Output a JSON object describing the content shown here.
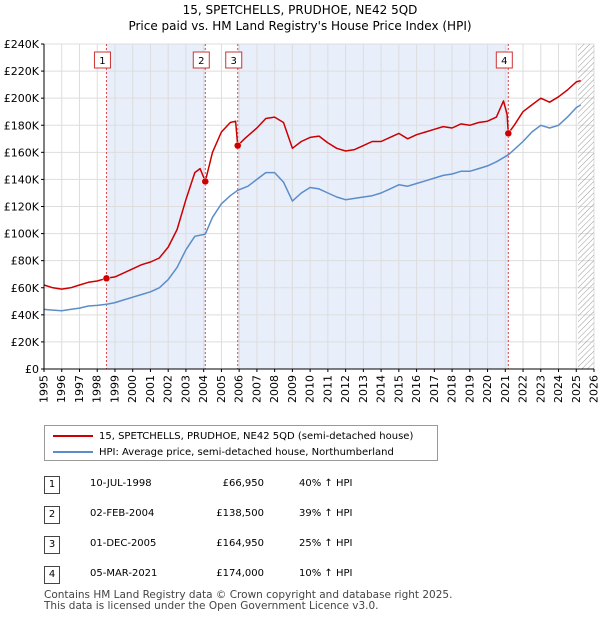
{
  "title_line1": "15, SPETCHELLS, PRUDHOE, NE42 5QD",
  "title_line2": "Price paid vs. HM Land Registry's House Price Index (HPI)",
  "chart_data": {
    "type": "line",
    "ylim": [
      0,
      240000
    ],
    "xlim": [
      1995,
      2026
    ],
    "y_ticks": [
      0,
      20000,
      40000,
      60000,
      80000,
      100000,
      120000,
      140000,
      160000,
      180000,
      200000,
      220000,
      240000
    ],
    "y_tick_labels": [
      "£0",
      "£20K",
      "£40K",
      "£60K",
      "£80K",
      "£100K",
      "£120K",
      "£140K",
      "£160K",
      "£180K",
      "£200K",
      "£220K",
      "£240K"
    ],
    "x_ticks": [
      1995,
      1996,
      1997,
      1998,
      1999,
      2000,
      2001,
      2002,
      2003,
      2004,
      2005,
      2006,
      2007,
      2008,
      2009,
      2010,
      2011,
      2012,
      2013,
      2014,
      2015,
      2016,
      2017,
      2018,
      2019,
      2020,
      2021,
      2022,
      2023,
      2024,
      2025,
      2026
    ],
    "x_tick_labels": [
      "1995",
      "1996",
      "1997",
      "1998",
      "1999",
      "2000",
      "2001",
      "2002",
      "2003",
      "2004",
      "2005",
      "2006",
      "2007",
      "2008",
      "2009",
      "2010",
      "2011",
      "2012",
      "2013",
      "2014",
      "2015",
      "2016",
      "2017",
      "2018",
      "2019",
      "2020",
      "2021",
      "2022",
      "2023",
      "2024",
      "2025",
      "2026"
    ],
    "shaded_ranges": [
      [
        1998.52,
        2004.09
      ],
      [
        2005.92,
        2021.17
      ]
    ],
    "hatched_from": 2025.1,
    "series": [
      {
        "name": "15, SPETCHELLS, PRUDHOE, NE42 5QD (semi-detached house)",
        "color": "#cc0000",
        "points": [
          [
            1995.0,
            62000
          ],
          [
            1995.5,
            60000
          ],
          [
            1996.0,
            59000
          ],
          [
            1996.5,
            60000
          ],
          [
            1997.0,
            62000
          ],
          [
            1997.5,
            64000
          ],
          [
            1998.0,
            65000
          ],
          [
            1998.52,
            66950
          ],
          [
            1999.0,
            68000
          ],
          [
            1999.5,
            71000
          ],
          [
            2000.0,
            74000
          ],
          [
            2000.5,
            77000
          ],
          [
            2001.0,
            79000
          ],
          [
            2001.5,
            82000
          ],
          [
            2002.0,
            90000
          ],
          [
            2002.5,
            103000
          ],
          [
            2003.0,
            125000
          ],
          [
            2003.5,
            145000
          ],
          [
            2003.8,
            148000
          ],
          [
            2004.09,
            138500
          ],
          [
            2004.5,
            160000
          ],
          [
            2005.0,
            175000
          ],
          [
            2005.5,
            182000
          ],
          [
            2005.8,
            183000
          ],
          [
            2005.92,
            164950
          ],
          [
            2006.3,
            170000
          ],
          [
            2007.0,
            178000
          ],
          [
            2007.5,
            185000
          ],
          [
            2008.0,
            186000
          ],
          [
            2008.5,
            182000
          ],
          [
            2009.0,
            163000
          ],
          [
            2009.5,
            168000
          ],
          [
            2010.0,
            171000
          ],
          [
            2010.5,
            172000
          ],
          [
            2011.0,
            167000
          ],
          [
            2011.5,
            163000
          ],
          [
            2012.0,
            161000
          ],
          [
            2012.5,
            162000
          ],
          [
            2013.0,
            165000
          ],
          [
            2013.5,
            168000
          ],
          [
            2014.0,
            168000
          ],
          [
            2014.5,
            171000
          ],
          [
            2015.0,
            174000
          ],
          [
            2015.5,
            170000
          ],
          [
            2016.0,
            173000
          ],
          [
            2016.5,
            175000
          ],
          [
            2017.0,
            177000
          ],
          [
            2017.5,
            179000
          ],
          [
            2018.0,
            178000
          ],
          [
            2018.5,
            181000
          ],
          [
            2019.0,
            180000
          ],
          [
            2019.5,
            182000
          ],
          [
            2020.0,
            183000
          ],
          [
            2020.5,
            186000
          ],
          [
            2020.9,
            198000
          ],
          [
            2021.1,
            188000
          ],
          [
            2021.17,
            174000
          ],
          [
            2021.5,
            180000
          ],
          [
            2022.0,
            190000
          ],
          [
            2022.5,
            195000
          ],
          [
            2023.0,
            200000
          ],
          [
            2023.5,
            197000
          ],
          [
            2024.0,
            201000
          ],
          [
            2024.5,
            206000
          ],
          [
            2025.0,
            212000
          ],
          [
            2025.25,
            213000
          ]
        ]
      },
      {
        "name": "HPI: Average price, semi-detached house, Northumberland",
        "color": "#5b8dc9",
        "points": [
          [
            1995.0,
            44000
          ],
          [
            1995.5,
            43500
          ],
          [
            1996.0,
            43000
          ],
          [
            1996.5,
            44000
          ],
          [
            1997.0,
            45000
          ],
          [
            1997.5,
            46500
          ],
          [
            1998.0,
            47000
          ],
          [
            1998.52,
            47800
          ],
          [
            1999.0,
            49000
          ],
          [
            1999.5,
            51000
          ],
          [
            2000.0,
            53000
          ],
          [
            2000.5,
            55000
          ],
          [
            2001.0,
            57000
          ],
          [
            2001.5,
            60000
          ],
          [
            2002.0,
            66000
          ],
          [
            2002.5,
            75000
          ],
          [
            2003.0,
            88000
          ],
          [
            2003.5,
            98000
          ],
          [
            2004.09,
            99600
          ],
          [
            2004.5,
            112000
          ],
          [
            2005.0,
            122000
          ],
          [
            2005.5,
            128000
          ],
          [
            2005.92,
            131960
          ],
          [
            2006.5,
            135000
          ],
          [
            2007.0,
            140000
          ],
          [
            2007.5,
            145000
          ],
          [
            2008.0,
            145000
          ],
          [
            2008.5,
            138000
          ],
          [
            2009.0,
            124000
          ],
          [
            2009.5,
            130000
          ],
          [
            2010.0,
            134000
          ],
          [
            2010.5,
            133000
          ],
          [
            2011.0,
            130000
          ],
          [
            2011.5,
            127000
          ],
          [
            2012.0,
            125000
          ],
          [
            2012.5,
            126000
          ],
          [
            2013.0,
            127000
          ],
          [
            2013.5,
            128000
          ],
          [
            2014.0,
            130000
          ],
          [
            2014.5,
            133000
          ],
          [
            2015.0,
            136000
          ],
          [
            2015.5,
            135000
          ],
          [
            2016.0,
            137000
          ],
          [
            2016.5,
            139000
          ],
          [
            2017.0,
            141000
          ],
          [
            2017.5,
            143000
          ],
          [
            2018.0,
            144000
          ],
          [
            2018.5,
            146000
          ],
          [
            2019.0,
            146000
          ],
          [
            2019.5,
            148000
          ],
          [
            2020.0,
            150000
          ],
          [
            2020.5,
            153000
          ],
          [
            2021.17,
            158200
          ],
          [
            2021.5,
            162000
          ],
          [
            2022.0,
            168000
          ],
          [
            2022.5,
            175000
          ],
          [
            2023.0,
            180000
          ],
          [
            2023.5,
            178000
          ],
          [
            2024.0,
            180000
          ],
          [
            2024.5,
            186000
          ],
          [
            2025.0,
            193000
          ],
          [
            2025.25,
            195000
          ]
        ]
      }
    ],
    "sales": [
      {
        "num": "1",
        "x": 1998.52,
        "price": 66950
      },
      {
        "num": "2",
        "x": 2004.09,
        "price": 138500
      },
      {
        "num": "3",
        "x": 2005.92,
        "price": 164950
      },
      {
        "num": "4",
        "x": 2021.17,
        "price": 174000
      }
    ]
  },
  "legend": {
    "red_label": "15, SPETCHELLS, PRUDHOE, NE42 5QD (semi-detached house)",
    "blue_label": "HPI: Average price, semi-detached house, Northumberland"
  },
  "transactions": [
    {
      "num": "1",
      "date": "10-JUL-1998",
      "price": "£66,950",
      "hpi": "40% ↑ HPI"
    },
    {
      "num": "2",
      "date": "02-FEB-2004",
      "price": "£138,500",
      "hpi": "39% ↑ HPI"
    },
    {
      "num": "3",
      "date": "01-DEC-2005",
      "price": "£164,950",
      "hpi": "25% ↑ HPI"
    },
    {
      "num": "4",
      "date": "05-MAR-2021",
      "price": "£174,000",
      "hpi": "10% ↑ HPI"
    }
  ],
  "footer": {
    "line1": "Contains HM Land Registry data © Crown copyright and database right 2025.",
    "line2": "This data is licensed under the Open Government Licence v3.0."
  },
  "colors": {
    "red": "#cc0000",
    "blue": "#5b8dc9",
    "shade": "#e8eefa",
    "grid": "#dddddd"
  }
}
